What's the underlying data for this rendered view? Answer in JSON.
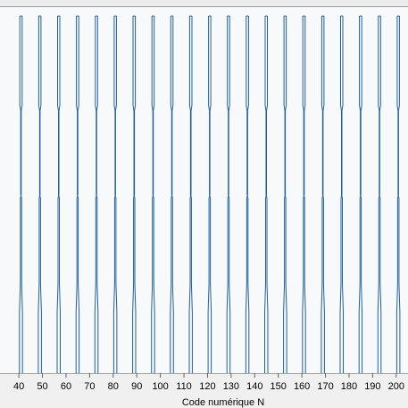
{
  "chart_data": {
    "type": "line",
    "xlabel": "Code numérique N",
    "ylabel": "",
    "xlim": [
      32,
      205
    ],
    "x_ticks": [
      40,
      50,
      60,
      70,
      80,
      90,
      100,
      110,
      120,
      130,
      140,
      150,
      160,
      170,
      180,
      190,
      200
    ],
    "grid": false,
    "series_color": "#1f5f9f",
    "plot_background": "#f7f9fb",
    "series": [
      {
        "step_profile": true,
        "periods": [
          {
            "start": 35.3,
            "period": 8
          },
          {
            "start": 43.3,
            "period": 8
          },
          {
            "start": 51.3,
            "period": 8
          },
          {
            "start": 59.3,
            "period": 8
          },
          {
            "start": 67.3,
            "period": 8
          },
          {
            "start": 75.3,
            "period": 8
          },
          {
            "start": 83.3,
            "period": 8
          },
          {
            "start": 91.3,
            "period": 8
          },
          {
            "start": 99.3,
            "period": 8
          },
          {
            "start": 107.3,
            "period": 8
          },
          {
            "start": 115.3,
            "period": 8
          },
          {
            "start": 123.3,
            "period": 8
          },
          {
            "start": 131.3,
            "period": 8
          },
          {
            "start": 139.3,
            "period": 8
          },
          {
            "start": 147.3,
            "period": 8
          },
          {
            "start": 155.3,
            "period": 8
          },
          {
            "start": 163.3,
            "period": 8
          },
          {
            "start": 171.3,
            "period": 8
          },
          {
            "start": 179.3,
            "period": 8
          },
          {
            "start": 187.3,
            "period": 8
          },
          {
            "start": 195.3,
            "period": 8
          }
        ]
      }
    ]
  }
}
